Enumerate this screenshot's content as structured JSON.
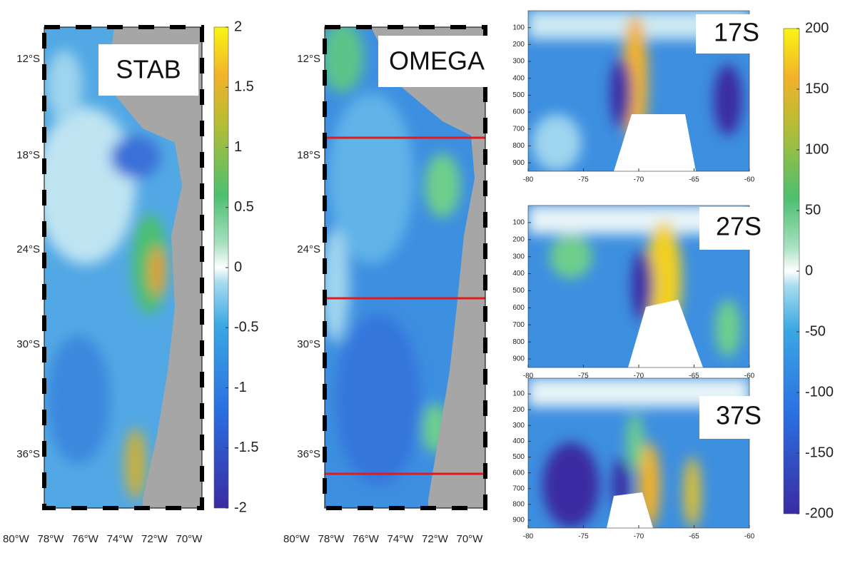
{
  "maps": [
    {
      "label": "STAB",
      "lat_labels": [
        "12°S",
        "18°S",
        "24°S",
        "30°S",
        "36°S"
      ],
      "lon_labels": [
        "80°W",
        "78°W",
        "76°W",
        "74°W",
        "72°W",
        "70°W"
      ]
    },
    {
      "label": "OMEGA",
      "lat_labels": [
        "12°S",
        "18°S",
        "24°S",
        "30°S",
        "36°S"
      ],
      "lon_labels": [
        "80°W",
        "78°W",
        "76°W",
        "74°W",
        "72°W",
        "70°W"
      ]
    }
  ],
  "colorbars": [
    {
      "lim": [
        -2,
        2
      ],
      "ticks": [
        2,
        1.5,
        1,
        0.5,
        0,
        -0.5,
        -1,
        -1.5,
        -2
      ]
    },
    {
      "lim": [
        -200,
        200
      ],
      "ticks": [
        200,
        150,
        100,
        50,
        0,
        -50,
        -100,
        -150,
        -200
      ]
    }
  ],
  "sections": [
    {
      "label": "17S",
      "xlim": [
        -80,
        -60
      ],
      "xticks": [
        -80,
        -75,
        -70,
        -65,
        -60
      ],
      "ylim": [
        0,
        950
      ],
      "yticks": [
        100,
        200,
        300,
        400,
        500,
        600,
        700,
        800,
        900
      ]
    },
    {
      "label": "27S",
      "xlim": [
        -80,
        -60
      ],
      "xticks": [
        -80,
        -75,
        -70,
        -65,
        -60
      ],
      "ylim": [
        0,
        950
      ],
      "yticks": [
        100,
        200,
        300,
        400,
        500,
        600,
        700,
        800,
        900
      ]
    },
    {
      "label": "37S",
      "xlim": [
        -80,
        -60
      ],
      "xticks": [
        -80,
        -75,
        -70,
        -65,
        -60
      ],
      "ylim": [
        0,
        950
      ],
      "yticks": [
        100,
        200,
        300,
        400,
        500,
        600,
        700,
        800,
        900
      ]
    }
  ]
}
